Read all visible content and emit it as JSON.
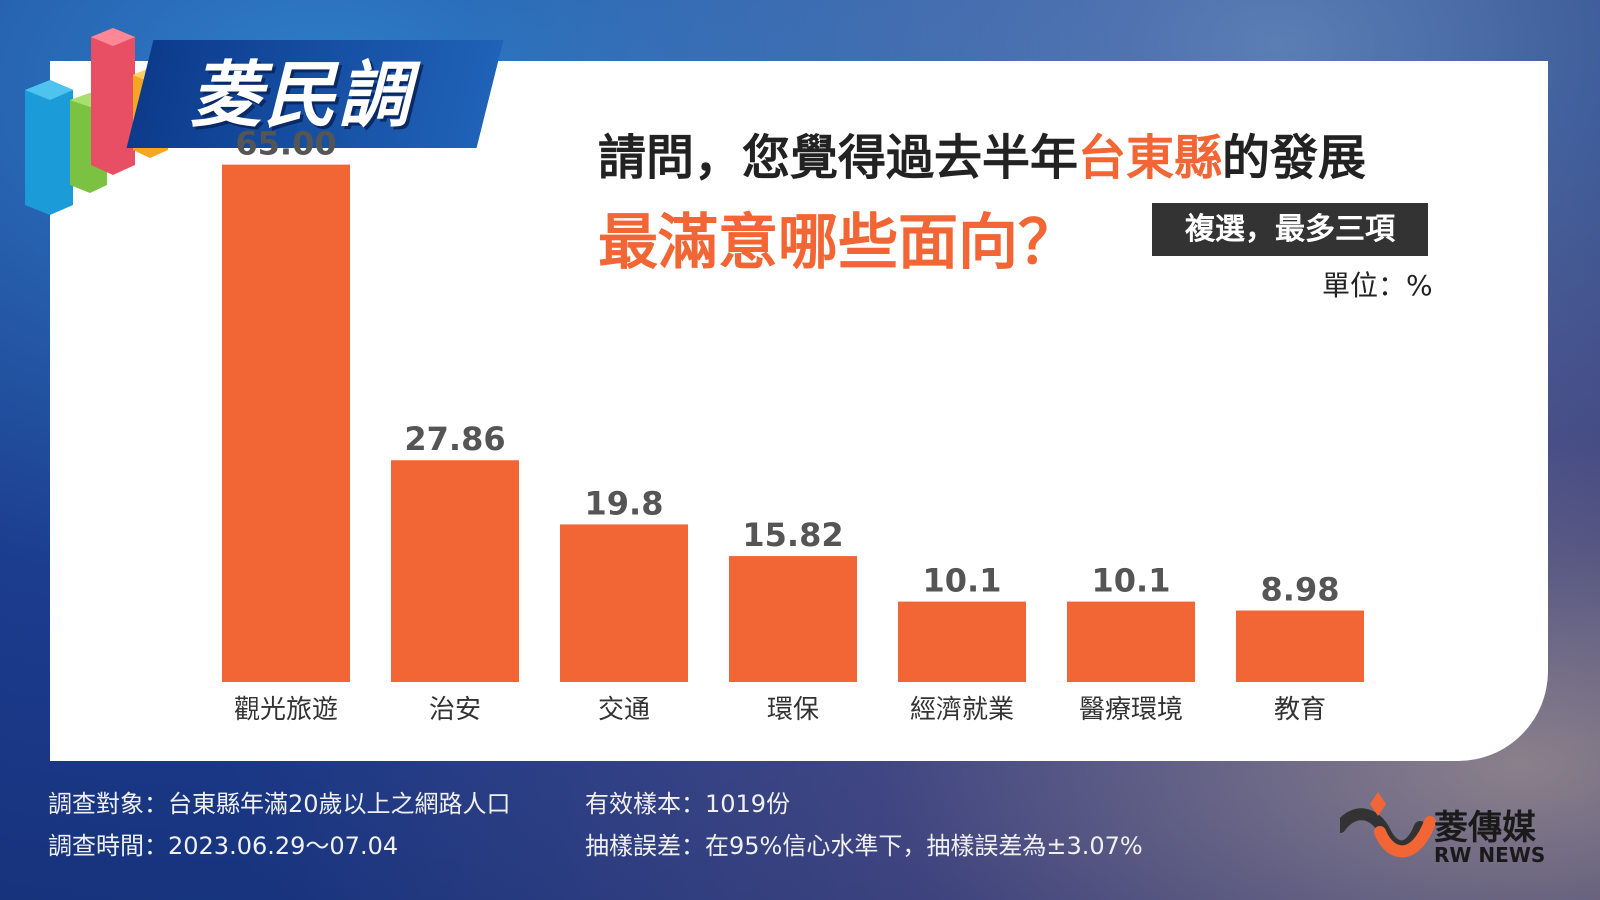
{
  "logo": {
    "text": "菱民調"
  },
  "title": {
    "line1_prefix": "請問，您覺得過去半年",
    "line1_highlight": "台東縣",
    "line1_suffix": "的發展",
    "line2": "最滿意哪些面向？"
  },
  "note": "複選，最多三項",
  "unit": "單位：%",
  "colors": {
    "bar": "#f26635",
    "label": "#555555",
    "highlight": "#f26635"
  },
  "chart_data": {
    "type": "bar",
    "categories": [
      "觀光旅遊",
      "治安",
      "交通",
      "環保",
      "經濟就業",
      "醫療環境",
      "教育"
    ],
    "values": [
      65.0,
      27.86,
      19.8,
      15.82,
      10.1,
      10.1,
      8.98
    ],
    "value_labels": [
      "65.00",
      "27.86",
      "19.8",
      "15.82",
      "10.1",
      "10.1",
      "8.98"
    ],
    "unit": "%",
    "grid": false
  },
  "footer": {
    "target": "調查對象：台東縣年滿20歲以上之網路人口",
    "period": "調查時間：2023.06.29～07.04",
    "sample": "有效樣本：1019份",
    "error": "抽樣誤差：在95%信心水準下，抽樣誤差為±3.07%"
  },
  "brand": {
    "cn": "菱傳媒",
    "en": "RW NEWS"
  }
}
